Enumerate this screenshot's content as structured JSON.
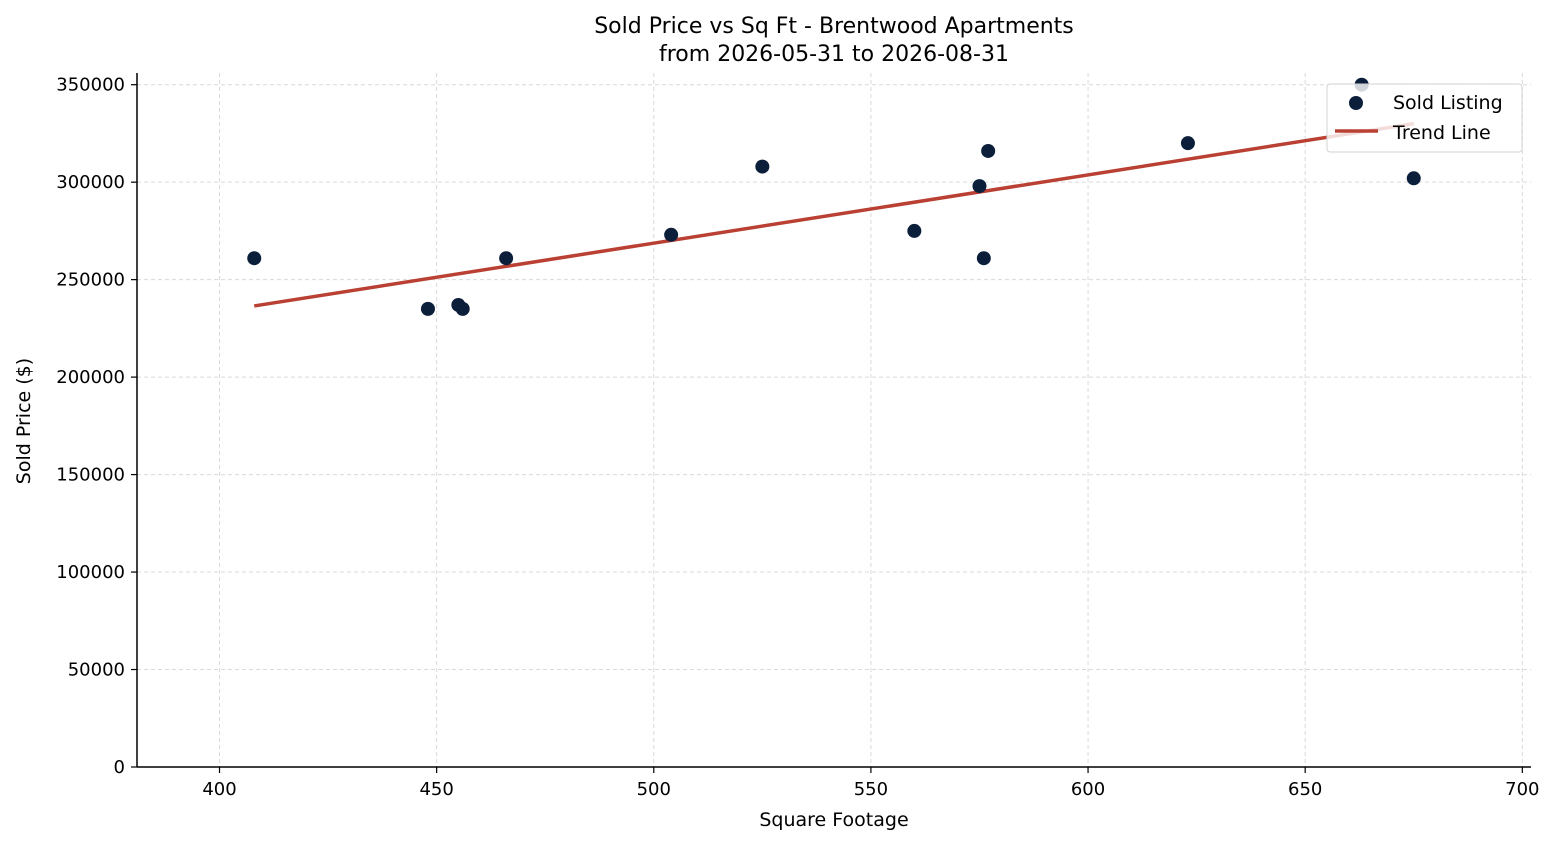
{
  "chart_data": {
    "type": "scatter",
    "title": "Sold Price vs Sq Ft - Brentwood Apartments",
    "subtitle": "from 2026-05-31 to 2026-08-31",
    "xlabel": "Square Footage",
    "ylabel": "Sold Price ($)",
    "xlim": [
      381,
      702
    ],
    "ylim": [
      0,
      356000
    ],
    "xticks": [
      400,
      450,
      500,
      550,
      600,
      650,
      700
    ],
    "yticks": [
      0,
      50000,
      100000,
      150000,
      200000,
      250000,
      300000,
      350000
    ],
    "grid": true,
    "legend_position": "top-right",
    "series": [
      {
        "name": "Sold Listing",
        "kind": "scatter",
        "color": "#0b1e3a",
        "points": [
          {
            "x": 408,
            "y": 261000
          },
          {
            "x": 448,
            "y": 235000
          },
          {
            "x": 455,
            "y": 237000
          },
          {
            "x": 456,
            "y": 235000
          },
          {
            "x": 466,
            "y": 261000
          },
          {
            "x": 504,
            "y": 273000
          },
          {
            "x": 525,
            "y": 308000
          },
          {
            "x": 560,
            "y": 275000
          },
          {
            "x": 575,
            "y": 298000
          },
          {
            "x": 576,
            "y": 261000
          },
          {
            "x": 577,
            "y": 316000
          },
          {
            "x": 623,
            "y": 320000
          },
          {
            "x": 663,
            "y": 350000
          },
          {
            "x": 675,
            "y": 302000
          }
        ]
      },
      {
        "name": "Trend Line",
        "kind": "line",
        "color": "#b94032",
        "points": [
          {
            "x": 408,
            "y": 236500
          },
          {
            "x": 675,
            "y": 330000
          }
        ]
      }
    ]
  }
}
